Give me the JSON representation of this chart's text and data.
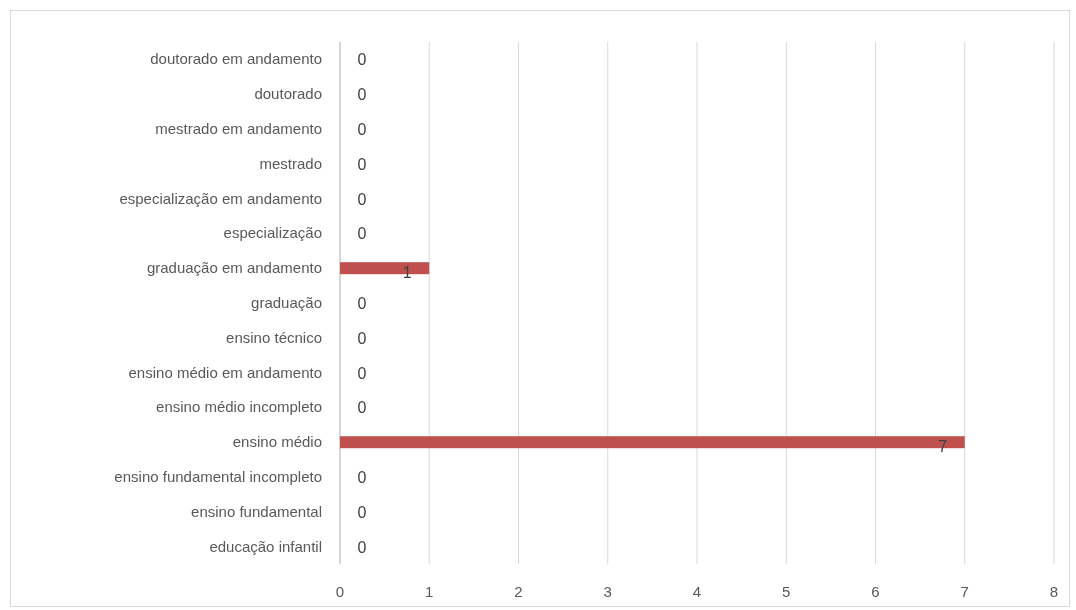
{
  "chart_data": {
    "type": "bar",
    "orientation": "horizontal",
    "categories": [
      "doutorado em andamento",
      "doutorado",
      "mestrado em andamento",
      "mestrado",
      "especialização em andamento",
      "especialização",
      "graduação em andamento",
      "graduação",
      "ensino técnico",
      "ensino médio em andamento",
      "ensino médio incompleto",
      "ensino médio",
      "ensino fundamental incompleto",
      "ensino fundamental",
      "educação infantil"
    ],
    "values": [
      0,
      0,
      0,
      0,
      0,
      0,
      1,
      0,
      0,
      0,
      0,
      7,
      0,
      0,
      0
    ],
    "color": "#c0504d",
    "xlim": [
      0,
      8
    ],
    "xticks": [
      0,
      1,
      2,
      3,
      4,
      5,
      6,
      7,
      8
    ],
    "grid": "x",
    "data_labels": true
  }
}
